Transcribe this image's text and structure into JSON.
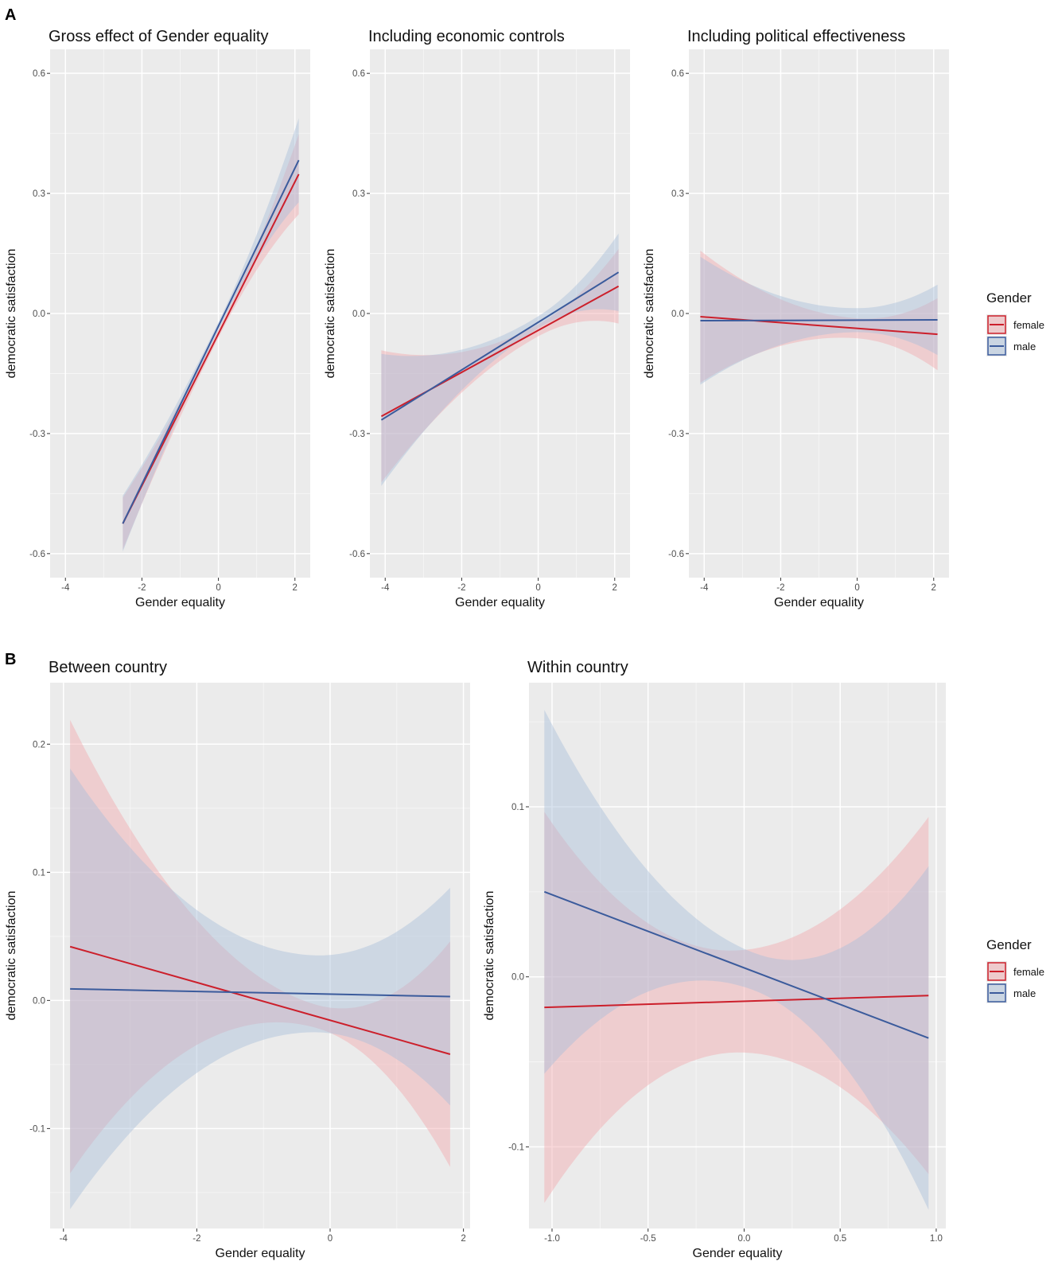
{
  "panel_labels": [
    "A",
    "B"
  ],
  "legend": {
    "title": "Gender",
    "entries": [
      {
        "label": "female",
        "color": "#cc1f2b",
        "fill": "#f2a9ae"
      },
      {
        "label": "male",
        "color": "#3b5b9c",
        "fill": "#a9bfd9"
      }
    ]
  },
  "chart_data": [
    {
      "type": "line",
      "title": "Gross effect of Gender equality",
      "xlabel": "Gender equality",
      "ylabel": "democratic satisfaction",
      "xlim": [
        -4.4,
        2.4
      ],
      "ylim": [
        -0.66,
        0.66
      ],
      "xticks": [
        {
          "v": -4,
          "label": "-4"
        },
        {
          "v": -2,
          "label": "-2"
        },
        {
          "v": 0,
          "label": "0"
        },
        {
          "v": 2,
          "label": "2"
        }
      ],
      "yticks": [
        {
          "v": -0.6,
          "label": "-0.6"
        },
        {
          "v": -0.3,
          "label": "-0.3"
        },
        {
          "v": 0,
          "label": "0.0"
        },
        {
          "v": 0.3,
          "label": "0.3"
        },
        {
          "v": 0.6,
          "label": "0.6"
        }
      ],
      "series": [
        {
          "name": "female",
          "x0": -2.5,
          "x1": 2.1,
          "y0": -0.525,
          "y1": 0.348,
          "ci0": 0.065,
          "cimin": 0.01,
          "ci1": 0.1,
          "xmin": 0.0
        },
        {
          "name": "male",
          "x0": -2.5,
          "x1": 2.1,
          "y0": -0.525,
          "y1": 0.383,
          "ci0": 0.07,
          "cimin": 0.01,
          "ci1": 0.105,
          "xmin": 0.0
        }
      ]
    },
    {
      "type": "line",
      "title": "Including economic controls",
      "xlabel": "Gender equality",
      "ylabel": "democratic satisfaction",
      "xlim": [
        -4.4,
        2.4
      ],
      "ylim": [
        -0.66,
        0.66
      ],
      "xticks": [
        {
          "v": -4,
          "label": "-4"
        },
        {
          "v": -2,
          "label": "-2"
        },
        {
          "v": 0,
          "label": "0"
        },
        {
          "v": 2,
          "label": "2"
        }
      ],
      "yticks": [
        {
          "v": -0.6,
          "label": "-0.6"
        },
        {
          "v": -0.3,
          "label": "-0.3"
        },
        {
          "v": 0,
          "label": "0.0"
        },
        {
          "v": 0.3,
          "label": "0.3"
        },
        {
          "v": 0.6,
          "label": "0.6"
        }
      ],
      "series": [
        {
          "name": "female",
          "x0": -4.1,
          "x1": 2.1,
          "y0": -0.257,
          "y1": 0.068,
          "ci0": 0.165,
          "cimin": 0.015,
          "ci1": 0.093,
          "xmin": 0.0
        },
        {
          "name": "male",
          "x0": -4.1,
          "x1": 2.1,
          "y0": -0.266,
          "y1": 0.103,
          "ci0": 0.165,
          "cimin": 0.015,
          "ci1": 0.097,
          "xmin": 0.0
        }
      ]
    },
    {
      "type": "line",
      "title": "Including political effectiveness",
      "xlabel": "Gender equality",
      "ylabel": "democratic satisfaction",
      "xlim": [
        -4.4,
        2.4
      ],
      "ylim": [
        -0.66,
        0.66
      ],
      "xticks": [
        {
          "v": -4,
          "label": "-4"
        },
        {
          "v": -2,
          "label": "-2"
        },
        {
          "v": 0,
          "label": "0"
        },
        {
          "v": 2,
          "label": "2"
        }
      ],
      "yticks": [
        {
          "v": -0.6,
          "label": "-0.6"
        },
        {
          "v": -0.3,
          "label": "-0.3"
        },
        {
          "v": 0,
          "label": "0.0"
        },
        {
          "v": 0.3,
          "label": "0.3"
        },
        {
          "v": 0.6,
          "label": "0.6"
        }
      ],
      "series": [
        {
          "name": "female",
          "x0": -4.1,
          "x1": 2.1,
          "y0": -0.008,
          "y1": -0.052,
          "ci0": 0.165,
          "cimin": 0.025,
          "ci1": 0.09,
          "xmin": 0.0
        },
        {
          "name": "male",
          "x0": -4.1,
          "x1": 2.1,
          "y0": -0.018,
          "y1": -0.016,
          "ci0": 0.16,
          "cimin": 0.03,
          "ci1": 0.088,
          "xmin": 0.0
        }
      ]
    },
    {
      "type": "line",
      "title": "Between country",
      "xlabel": "Gender equality",
      "ylabel": "democratic satisfaction",
      "xlim": [
        -4.2,
        2.1
      ],
      "ylim": [
        -0.178,
        0.248
      ],
      "xticks": [
        {
          "v": -4,
          "label": "-4"
        },
        {
          "v": -2,
          "label": "-2"
        },
        {
          "v": 0,
          "label": "0"
        },
        {
          "v": 2,
          "label": "2"
        }
      ],
      "yticks": [
        {
          "v": -0.1,
          "label": "-0.1"
        },
        {
          "v": 0,
          "label": "0.0"
        },
        {
          "v": 0.1,
          "label": "0.1"
        },
        {
          "v": 0.2,
          "label": "0.2"
        }
      ],
      "series": [
        {
          "name": "female",
          "x0": -3.9,
          "x1": 1.8,
          "y0": 0.042,
          "y1": -0.042,
          "ci0": 0.177,
          "cimin": 0.009,
          "ci1": 0.088,
          "xmin": -0.2
        },
        {
          "name": "male",
          "x0": -3.9,
          "x1": 1.8,
          "y0": 0.009,
          "y1": 0.003,
          "ci0": 0.172,
          "cimin": 0.03,
          "ci1": 0.085,
          "xmin": -0.2
        }
      ]
    },
    {
      "type": "line",
      "title": "Within country",
      "xlabel": "Gender equality",
      "ylabel": "democratic satisfaction",
      "xlim": [
        -1.12,
        1.05
      ],
      "ylim": [
        -0.148,
        0.173
      ],
      "xticks": [
        {
          "v": -1,
          "label": "-1.0"
        },
        {
          "v": -0.5,
          "label": "-0.5"
        },
        {
          "v": 0,
          "label": "0.0"
        },
        {
          "v": 0.5,
          "label": "0.5"
        },
        {
          "v": 1,
          "label": "1.0"
        }
      ],
      "yticks": [
        {
          "v": -0.1,
          "label": "-0.1"
        },
        {
          "v": 0,
          "label": "0.0"
        },
        {
          "v": 0.1,
          "label": "0.1"
        }
      ],
      "series": [
        {
          "name": "female",
          "x0": -1.04,
          "x1": 0.96,
          "y0": -0.018,
          "y1": -0.011,
          "ci0": 0.115,
          "cimin": 0.03,
          "ci1": 0.105,
          "xmin": -0.05
        },
        {
          "name": "male",
          "x0": -1.04,
          "x1": 0.96,
          "y0": 0.05,
          "y1": -0.036,
          "ci0": 0.107,
          "cimin": 0.011,
          "ci1": 0.101,
          "xmin": 0.05
        }
      ]
    }
  ]
}
